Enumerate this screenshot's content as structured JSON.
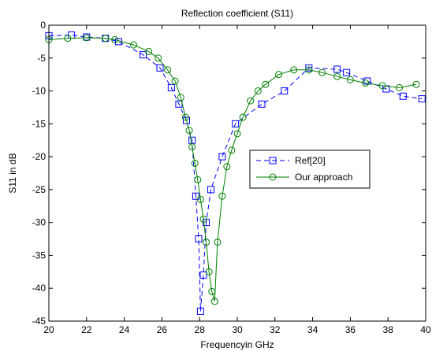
{
  "chart_data": {
    "type": "line",
    "title": "Reflection coefficient (S11)",
    "xlabel": "Frequencyin GHz",
    "ylabel": "S11 in dB",
    "xlim": [
      20,
      40
    ],
    "ylim": [
      -45,
      0
    ],
    "xticks": [
      20,
      22,
      24,
      26,
      28,
      30,
      32,
      34,
      36,
      38,
      40
    ],
    "yticks": [
      0,
      -5,
      -10,
      -15,
      -20,
      -25,
      -30,
      -35,
      -40,
      -45
    ],
    "grid": false,
    "legend_position": "center-right",
    "series": [
      {
        "name": "Ref[20]",
        "color": "#0000ff",
        "line_style": "dashed",
        "marker": "square",
        "x": [
          20.0,
          21.2,
          22.0,
          23.0,
          23.7,
          25.0,
          25.9,
          26.5,
          26.9,
          27.3,
          27.6,
          27.8,
          27.95,
          28.05,
          28.2,
          28.35,
          28.6,
          29.2,
          29.9,
          31.3,
          32.5,
          33.8,
          35.3,
          35.8,
          36.9,
          37.9,
          38.8,
          39.8
        ],
        "y": [
          -1.6,
          -1.5,
          -1.8,
          -2.0,
          -2.5,
          -4.5,
          -6.5,
          -9.5,
          -12.0,
          -14.5,
          -17.5,
          -26.0,
          -32.5,
          -43.5,
          -38.0,
          -30.0,
          -25.0,
          -20.0,
          -15.0,
          -12.0,
          -10.0,
          -6.5,
          -6.7,
          -7.2,
          -8.5,
          -9.7,
          -10.8,
          -11.2
        ]
      },
      {
        "name": "Our approach",
        "color": "#008000",
        "line_style": "solid",
        "marker": "circle",
        "x": [
          20.0,
          21.0,
          22.0,
          23.0,
          23.5,
          24.5,
          25.3,
          25.8,
          26.3,
          26.7,
          27.0,
          27.25,
          27.45,
          27.6,
          27.75,
          27.9,
          28.05,
          28.2,
          28.35,
          28.5,
          28.65,
          28.8,
          28.95,
          29.2,
          29.45,
          29.7,
          30.0,
          30.3,
          30.7,
          31.1,
          31.5,
          32.2,
          33.0,
          33.8,
          34.5,
          35.3,
          36.0,
          36.8,
          37.7,
          38.6,
          39.5
        ],
        "y": [
          -2.2,
          -2.0,
          -1.9,
          -2.0,
          -2.2,
          -3.0,
          -4.0,
          -5.0,
          -6.8,
          -8.5,
          -11.0,
          -14.0,
          -16.0,
          -18.5,
          -21.0,
          -23.5,
          -26.5,
          -29.5,
          -33.0,
          -37.5,
          -40.5,
          -42.0,
          -33.0,
          -26.0,
          -21.5,
          -19.0,
          -16.5,
          -14.0,
          -11.5,
          -10.0,
          -9.0,
          -7.5,
          -6.8,
          -6.8,
          -7.2,
          -7.8,
          -8.3,
          -8.8,
          -9.2,
          -9.5,
          -9.0
        ]
      }
    ]
  }
}
